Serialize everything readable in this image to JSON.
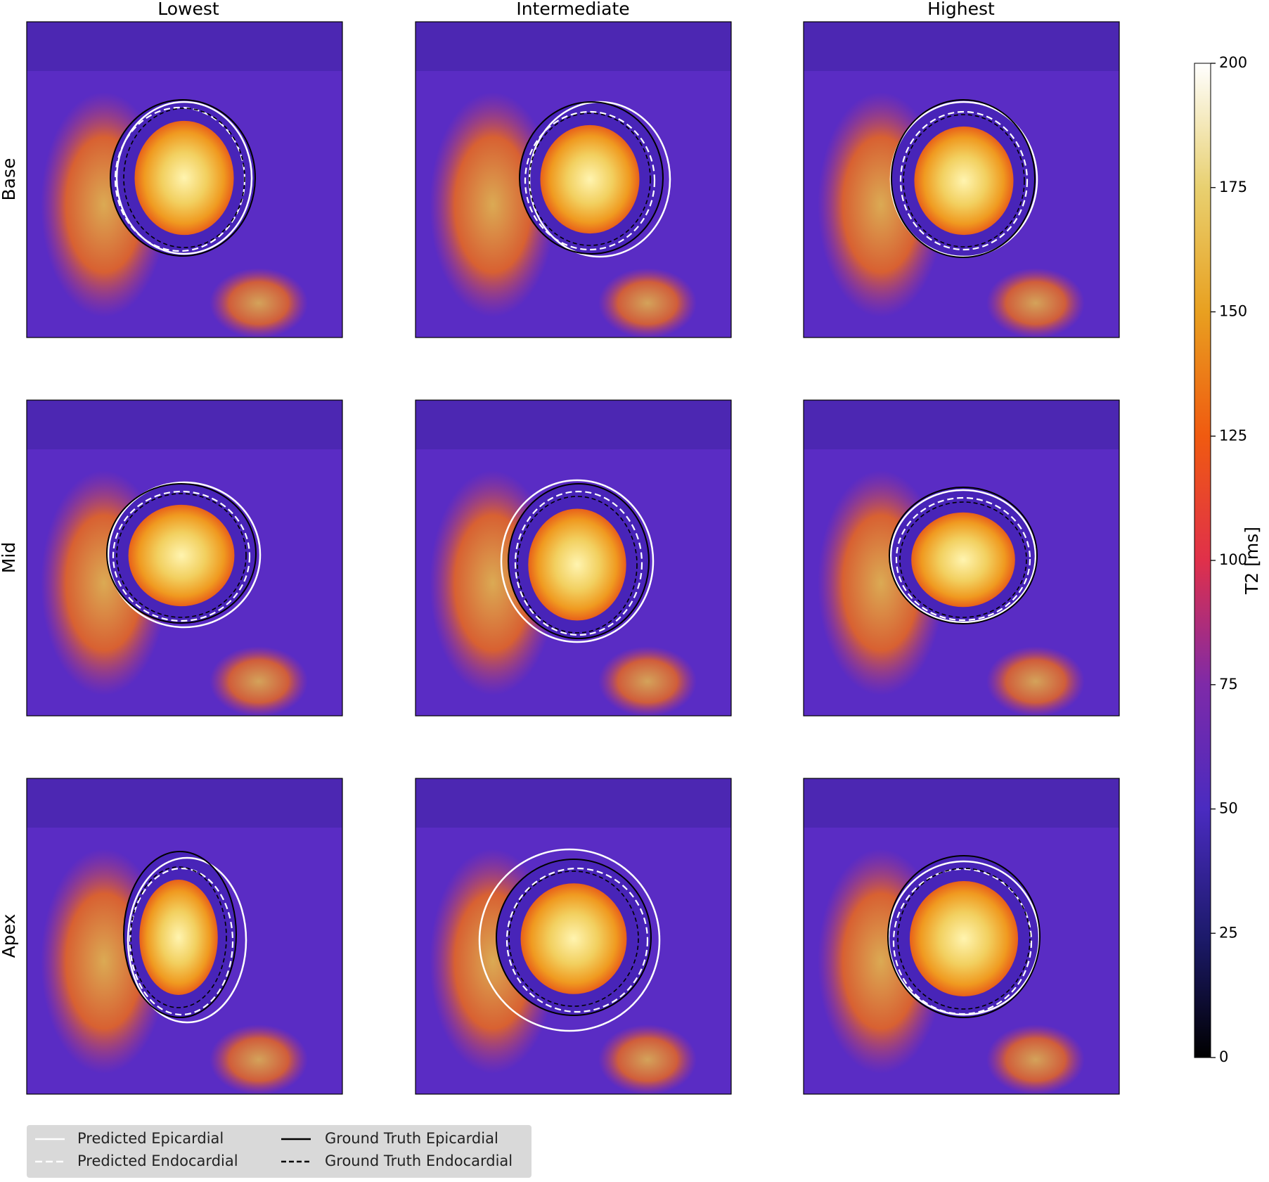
{
  "columns": [
    "Lowest",
    "Intermediate",
    "Highest"
  ],
  "rows": [
    "Base",
    "Mid",
    "Apex"
  ],
  "colorbar": {
    "label": "T2 [ms]",
    "lim": [
      0,
      200
    ],
    "ticks": [
      0,
      25,
      50,
      75,
      100,
      125,
      150,
      175,
      200
    ]
  },
  "legend": [
    "Predicted Epicardial",
    "Predicted Endocardial",
    "Ground Truth Epicardial",
    "Ground Truth Endocardial"
  ]
}
